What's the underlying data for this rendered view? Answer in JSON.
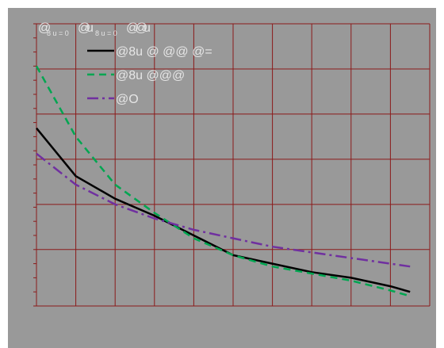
{
  "chart_data": {
    "type": "line",
    "title_fragments": [
      {
        "text": "@",
        "size": "large"
      },
      {
        "text": "8 u = 0",
        "size": "small"
      },
      {
        "text": "@",
        "size": "large"
      },
      {
        "text": "u",
        "size": "large"
      },
      {
        "text": "8 u = 0",
        "size": "small"
      },
      {
        "text": "@",
        "size": "large"
      },
      {
        "text": "@",
        "size": "large"
      },
      {
        "text": "u",
        "size": "large"
      }
    ],
    "xlim": [
      0,
      10
    ],
    "ylim": [
      0,
      10
    ],
    "grid": true,
    "legend_position": "top-left",
    "series": [
      {
        "name": "@8u @ @@ @=",
        "color": "#000000",
        "dash": "solid",
        "x": [
          0,
          1,
          2,
          3,
          4,
          5,
          6,
          7,
          8,
          9,
          9.5
        ],
        "y": [
          6.3,
          4.6,
          3.8,
          3.2,
          2.5,
          1.8,
          1.5,
          1.2,
          1.0,
          0.7,
          0.5
        ]
      },
      {
        "name": "@8u @@@",
        "color": "#00a651",
        "dash": "dashed",
        "x": [
          0,
          1,
          2,
          3,
          4,
          5,
          6,
          7,
          8,
          9,
          9.5
        ],
        "y": [
          8.5,
          6.0,
          4.3,
          3.3,
          2.4,
          1.8,
          1.4,
          1.15,
          0.9,
          0.55,
          0.35
        ]
      },
      {
        "name": "@O",
        "color": "#7030a0",
        "dash": "dash-dot",
        "x": [
          0,
          1,
          2,
          3,
          4,
          5,
          6,
          7,
          8,
          9,
          9.5
        ],
        "y": [
          5.4,
          4.3,
          3.6,
          3.1,
          2.7,
          2.4,
          2.1,
          1.9,
          1.7,
          1.5,
          1.4
        ]
      }
    ]
  }
}
